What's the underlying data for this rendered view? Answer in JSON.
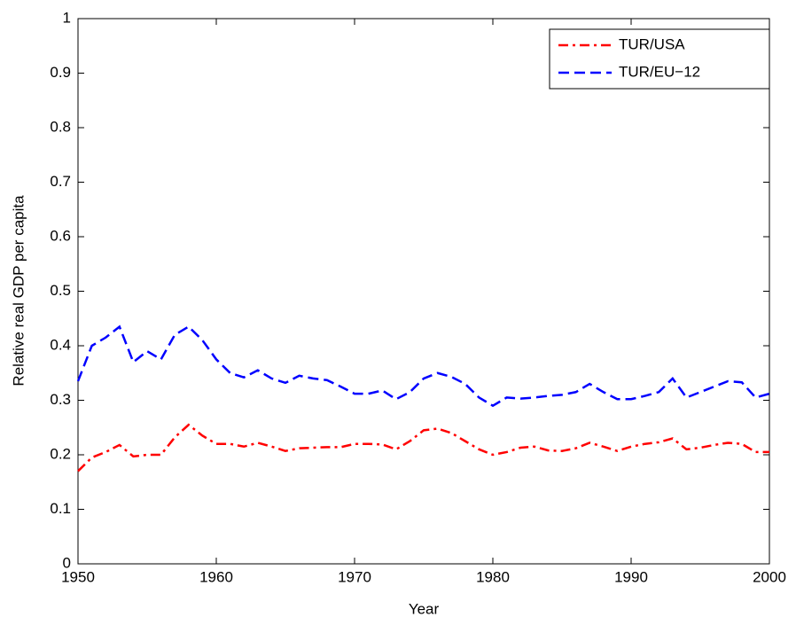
{
  "chart_data": {
    "type": "line",
    "x_label": "Year",
    "y_label": "Relative real GDP per capita",
    "x": [
      1950,
      1951,
      1952,
      1953,
      1954,
      1955,
      1956,
      1957,
      1958,
      1959,
      1960,
      1961,
      1962,
      1963,
      1964,
      1965,
      1966,
      1967,
      1968,
      1969,
      1970,
      1971,
      1972,
      1973,
      1974,
      1975,
      1976,
      1977,
      1978,
      1979,
      1980,
      1981,
      1982,
      1983,
      1984,
      1985,
      1986,
      1987,
      1988,
      1989,
      1990,
      1991,
      1992,
      1993,
      1994,
      1995,
      1996,
      1997,
      1998,
      1999,
      2000
    ],
    "series": [
      {
        "name": "TUR/USA",
        "color": "#ff0000",
        "dash": "dashdot",
        "values": [
          0.17,
          0.195,
          0.205,
          0.218,
          0.197,
          0.2,
          0.2,
          0.232,
          0.255,
          0.235,
          0.22,
          0.22,
          0.215,
          0.222,
          0.215,
          0.207,
          0.212,
          0.213,
          0.214,
          0.214,
          0.22,
          0.22,
          0.219,
          0.21,
          0.225,
          0.245,
          0.248,
          0.24,
          0.225,
          0.21,
          0.2,
          0.205,
          0.213,
          0.215,
          0.208,
          0.207,
          0.212,
          0.222,
          0.215,
          0.207,
          0.215,
          0.22,
          0.223,
          0.23,
          0.21,
          0.213,
          0.218,
          0.222,
          0.22,
          0.205,
          0.205
        ]
      },
      {
        "name": "TUR/EU−12",
        "color": "#0000ff",
        "dash": "dashed",
        "values": [
          0.335,
          0.4,
          0.415,
          0.435,
          0.37,
          0.39,
          0.375,
          0.42,
          0.435,
          0.41,
          0.375,
          0.35,
          0.342,
          0.355,
          0.34,
          0.332,
          0.345,
          0.34,
          0.337,
          0.325,
          0.312,
          0.312,
          0.318,
          0.302,
          0.315,
          0.34,
          0.35,
          0.343,
          0.33,
          0.305,
          0.29,
          0.305,
          0.303,
          0.305,
          0.308,
          0.31,
          0.315,
          0.33,
          0.315,
          0.302,
          0.302,
          0.308,
          0.315,
          0.34,
          0.305,
          0.315,
          0.325,
          0.335,
          0.333,
          0.305,
          0.312
        ]
      }
    ],
    "xlim": [
      1950,
      2000
    ],
    "xticks": [
      1950,
      1960,
      1970,
      1980,
      1990,
      2000
    ],
    "ylim": [
      0,
      1
    ],
    "yticks": [
      0,
      0.1,
      0.2,
      0.3,
      0.4,
      0.5,
      0.6,
      0.7,
      0.8,
      0.9,
      1
    ],
    "legend": "northeast",
    "grid": false
  }
}
